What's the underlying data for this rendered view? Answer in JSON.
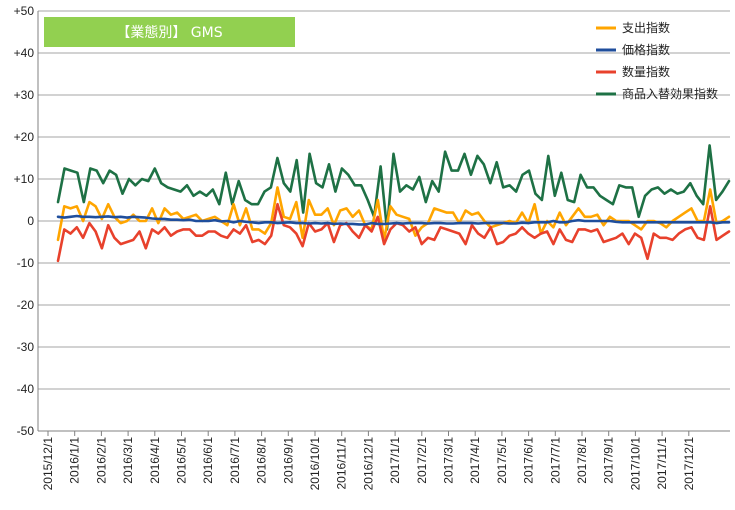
{
  "title": "【業態別】 GMS",
  "colors": {
    "title_bg": "#92d050",
    "grid": "#a6a6a6",
    "axis": "#808080"
  },
  "chart_data": {
    "type": "line",
    "title": "【業態別】 GMS",
    "ylim": [
      -50,
      50
    ],
    "yticks": [
      "+50",
      "+40",
      "+30",
      "+20",
      "+10",
      "0",
      "-10",
      "-20",
      "-30",
      "-40",
      "-50"
    ],
    "xticks": [
      "2015/12/1",
      "2016/1/1",
      "2016/2/1",
      "2016/3/1",
      "2016/4/1",
      "2016/5/1",
      "2016/6/1",
      "2016/7/1",
      "2016/8/1",
      "2016/9/1",
      "2016/10/1",
      "2016/11/1",
      "2016/12/1",
      "2017/1/1",
      "2017/2/1",
      "2017/3/1",
      "2017/4/1",
      "2017/5/1",
      "2017/6/1",
      "2017/7/1",
      "2017/8/1",
      "2017/9/1",
      "2017/10/1",
      "2017/11/1",
      "2017/12/1"
    ],
    "grid": true,
    "legend_position": "top-right",
    "series": [
      {
        "name": "支出指数",
        "color": "#ffa500",
        "values": [
          -4.5,
          3.5,
          3,
          3.5,
          0,
          4.5,
          3.5,
          0.5,
          4,
          1,
          -0.5,
          0,
          1.5,
          0,
          0,
          3,
          -0.5,
          3,
          1.5,
          2,
          0.5,
          1,
          1.5,
          0,
          0.5,
          1,
          0,
          -1,
          4,
          -1,
          3,
          -2,
          -2,
          -3,
          -0.5,
          8,
          1,
          0.5,
          4.5,
          -4,
          5,
          1.5,
          1.5,
          3,
          -1,
          2.5,
          3,
          1,
          2.5,
          -1,
          -2,
          5,
          -4.5,
          3.5,
          1.5,
          1,
          0.5,
          -3.5,
          -1.5,
          -0.5,
          3,
          2.5,
          2,
          2,
          -0.5,
          2.5,
          1.5,
          2,
          0,
          -1.5,
          -1,
          -0.5,
          0,
          -0.5,
          2,
          -0.5,
          4,
          -3,
          0,
          -1.5,
          2,
          -1,
          1,
          3,
          1,
          1,
          1.5,
          -1,
          1,
          0,
          0,
          0,
          -1,
          -2,
          0,
          0,
          -0.5,
          -1.5,
          0,
          1,
          2,
          3,
          0,
          0,
          7.5,
          -0.5,
          0,
          1
        ]
      },
      {
        "name": "価格指数",
        "color": "#1f4e9c",
        "values": [
          1,
          0.8,
          1,
          1.2,
          1,
          1,
          0.9,
          1,
          1.1,
          0.9,
          1,
          0.8,
          1,
          0.9,
          0.8,
          0.6,
          0.5,
          0.5,
          0.3,
          0.3,
          0.2,
          0.3,
          0,
          0,
          0,
          0.2,
          -0.1,
          0,
          -0.3,
          0,
          -0.2,
          -0.3,
          -0.5,
          -0.3,
          -0.3,
          -0.5,
          -0.4,
          -0.3,
          -0.5,
          -0.5,
          -0.6,
          -0.5,
          -0.6,
          -0.5,
          -0.7,
          -0.6,
          -0.7,
          -0.7,
          -0.8,
          -0.8,
          -0.5,
          -0.7,
          -0.7,
          -0.6,
          -0.5,
          -0.6,
          -0.5,
          -0.5,
          -0.5,
          -0.6,
          -0.5,
          -0.5,
          -0.6,
          -0.6,
          -0.5,
          -0.5,
          -0.5,
          -0.6,
          -0.5,
          -0.5,
          -0.5,
          -0.5,
          -0.6,
          -0.6,
          -0.4,
          -0.5,
          -0.3,
          -0.3,
          -0.3,
          0,
          -0.3,
          -0.3,
          0,
          0.2,
          0,
          0,
          0,
          0,
          0,
          -0.2,
          -0.3,
          -0.3,
          -0.3,
          -0.3,
          -0.3,
          -0.3,
          -0.3,
          -0.3,
          -0.3,
          -0.3,
          -0.3,
          -0.3,
          -0.3,
          -0.3,
          -0.3,
          -0.5,
          -0.3,
          -0.3
        ]
      },
      {
        "name": "数量指数",
        "color": "#e8412c",
        "values": [
          -9.5,
          -2,
          -3,
          -1.5,
          -4,
          -0.5,
          -2.5,
          -6.5,
          -1,
          -4,
          -5.5,
          -5,
          -4.5,
          -2.5,
          -6.5,
          -2,
          -3,
          -1.5,
          -3.5,
          -2.5,
          -2,
          -2,
          -3.5,
          -3.5,
          -2.5,
          -2.5,
          -3.5,
          -4,
          -2,
          -3,
          -1,
          -5,
          -4.5,
          -5.5,
          -3.5,
          4,
          -1,
          -1.5,
          -3,
          -6,
          -0.5,
          -2.5,
          -2,
          -0.5,
          -5,
          -1,
          -0.5,
          -2.5,
          -4,
          -1,
          -2.5,
          1,
          -5.5,
          -2,
          -0.5,
          -1,
          -2.5,
          -1.5,
          -5.5,
          -4,
          -4.5,
          -1.5,
          -2,
          -2.5,
          -3,
          -5.5,
          -1,
          -3,
          -4,
          -1.5,
          -5.5,
          -5,
          -3.5,
          -3,
          -1.5,
          -3,
          -4,
          -3,
          -2.5,
          -5.5,
          -2,
          -4.5,
          -5,
          -2,
          -2,
          -2.5,
          -2,
          -5,
          -4.5,
          -4,
          -3,
          -5.5,
          -3,
          -4,
          -9,
          -3,
          -4,
          -4,
          -4.5,
          -3,
          -2,
          -1.5,
          -4,
          -4.5,
          3.5,
          -4.5,
          -3.5,
          -2.5
        ]
      },
      {
        "name": "商品入替効果指数",
        "color": "#1e7145",
        "values": [
          4.5,
          12.5,
          12,
          11.5,
          4.5,
          12.5,
          12,
          9,
          12,
          11,
          6.5,
          10,
          8.5,
          10,
          9.5,
          12.5,
          9,
          8,
          7.5,
          7,
          8.5,
          6,
          7,
          6,
          7.5,
          4,
          11.5,
          4,
          9.5,
          5,
          4,
          4,
          7,
          8,
          15,
          9,
          7,
          14.5,
          2,
          16,
          9,
          8,
          13.5,
          7,
          12.5,
          11,
          8.5,
          8.5,
          5,
          1,
          13,
          -2,
          16,
          7,
          8.5,
          7.5,
          10.5,
          4.5,
          9.5,
          7,
          16.5,
          12,
          12,
          16,
          11,
          15.5,
          13.5,
          9,
          14,
          8,
          8.5,
          7,
          11,
          12,
          6.5,
          5,
          15.5,
          6,
          11.5,
          5,
          4.5,
          11,
          8,
          8,
          6,
          5,
          4,
          8.5,
          8,
          8,
          1,
          6,
          7.5,
          8,
          6.5,
          7.5,
          6.5,
          7,
          9,
          6,
          4,
          18,
          5,
          7,
          9.5
        ]
      }
    ]
  }
}
